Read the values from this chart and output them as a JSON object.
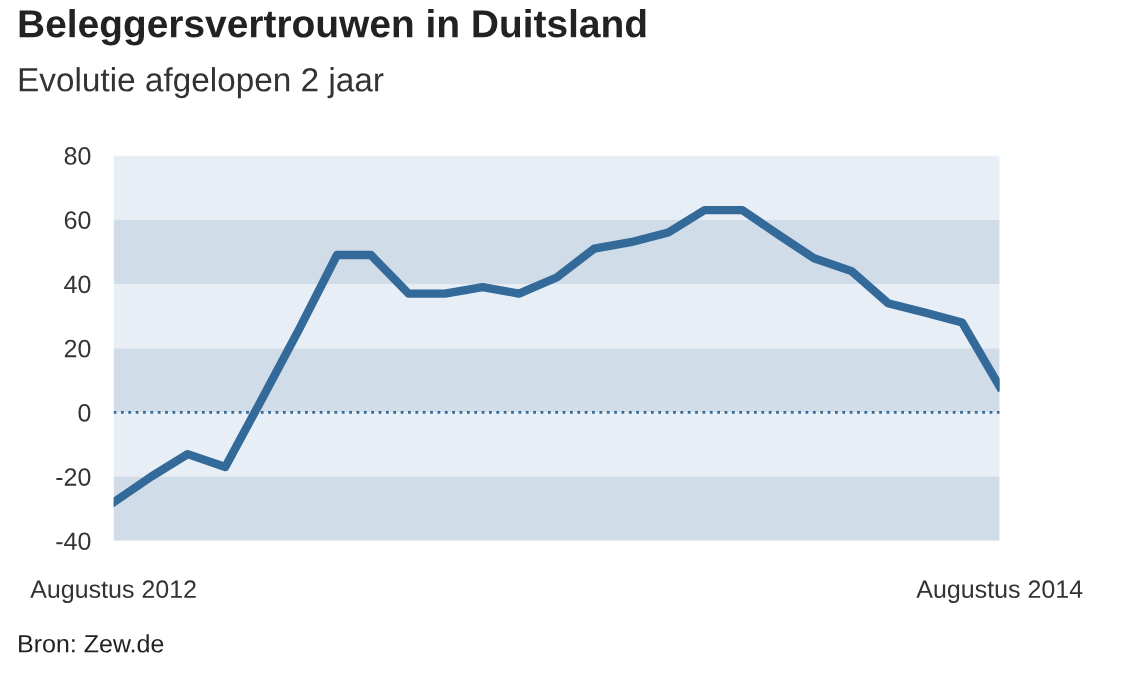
{
  "chart_data": {
    "type": "line",
    "title": "Beleggersvertrouwen in Duitsland",
    "subtitle": "Evolutie afgelopen 2 jaar",
    "annotations": [
      "Bron: Zew.de"
    ],
    "x": [
      "2012-08",
      "2012-09",
      "2012-10",
      "2012-11",
      "2012-12",
      "2013-01",
      "2013-02",
      "2013-03",
      "2013-04",
      "2013-05",
      "2013-06",
      "2013-07",
      "2013-08",
      "2013-09",
      "2013-10",
      "2013-11",
      "2013-12",
      "2014-01",
      "2014-02",
      "2014-03",
      "2014-04",
      "2014-05",
      "2014-06",
      "2014-07",
      "2014-08"
    ],
    "series": [
      {
        "color": "#336a9a",
        "values": [
          -28,
          -20,
          -13,
          -17,
          4,
          26,
          49,
          49,
          37,
          37,
          39,
          37,
          42,
          51,
          53,
          56,
          63,
          63,
          55,
          48,
          44,
          34,
          31,
          28,
          8
        ]
      }
    ],
    "xlim": [
      "2012-08",
      "2014-08"
    ],
    "xticks": [
      {
        "value": "2012-08",
        "label": "Augustus 2012"
      },
      {
        "value": "2014-08",
        "label": "Augustus 2014"
      }
    ],
    "ylim": [
      -40,
      80
    ],
    "yticks": [
      -40,
      -20,
      0,
      20,
      40,
      60,
      80
    ],
    "ref_lines": [
      {
        "axis": "y",
        "value": 0,
        "color": "#336a9a",
        "line_style": "dotted"
      }
    ],
    "bands": [
      {
        "axis": "y",
        "from": 60,
        "to": 80,
        "color": "#e8eef6"
      },
      {
        "axis": "y",
        "from": 40,
        "to": 60,
        "color": "#d0dce8"
      },
      {
        "axis": "y",
        "from": 20,
        "to": 40,
        "color": "#e8eef6"
      },
      {
        "axis": "y",
        "from": 0,
        "to": 20,
        "color": "#d0dce8"
      },
      {
        "axis": "y",
        "from": -20,
        "to": 0,
        "color": "#e8eef6"
      },
      {
        "axis": "y",
        "from": -40,
        "to": -20,
        "color": "#d0dce8"
      }
    ],
    "grid": false,
    "legend": false,
    "marker": "none",
    "line_style": "solid"
  }
}
